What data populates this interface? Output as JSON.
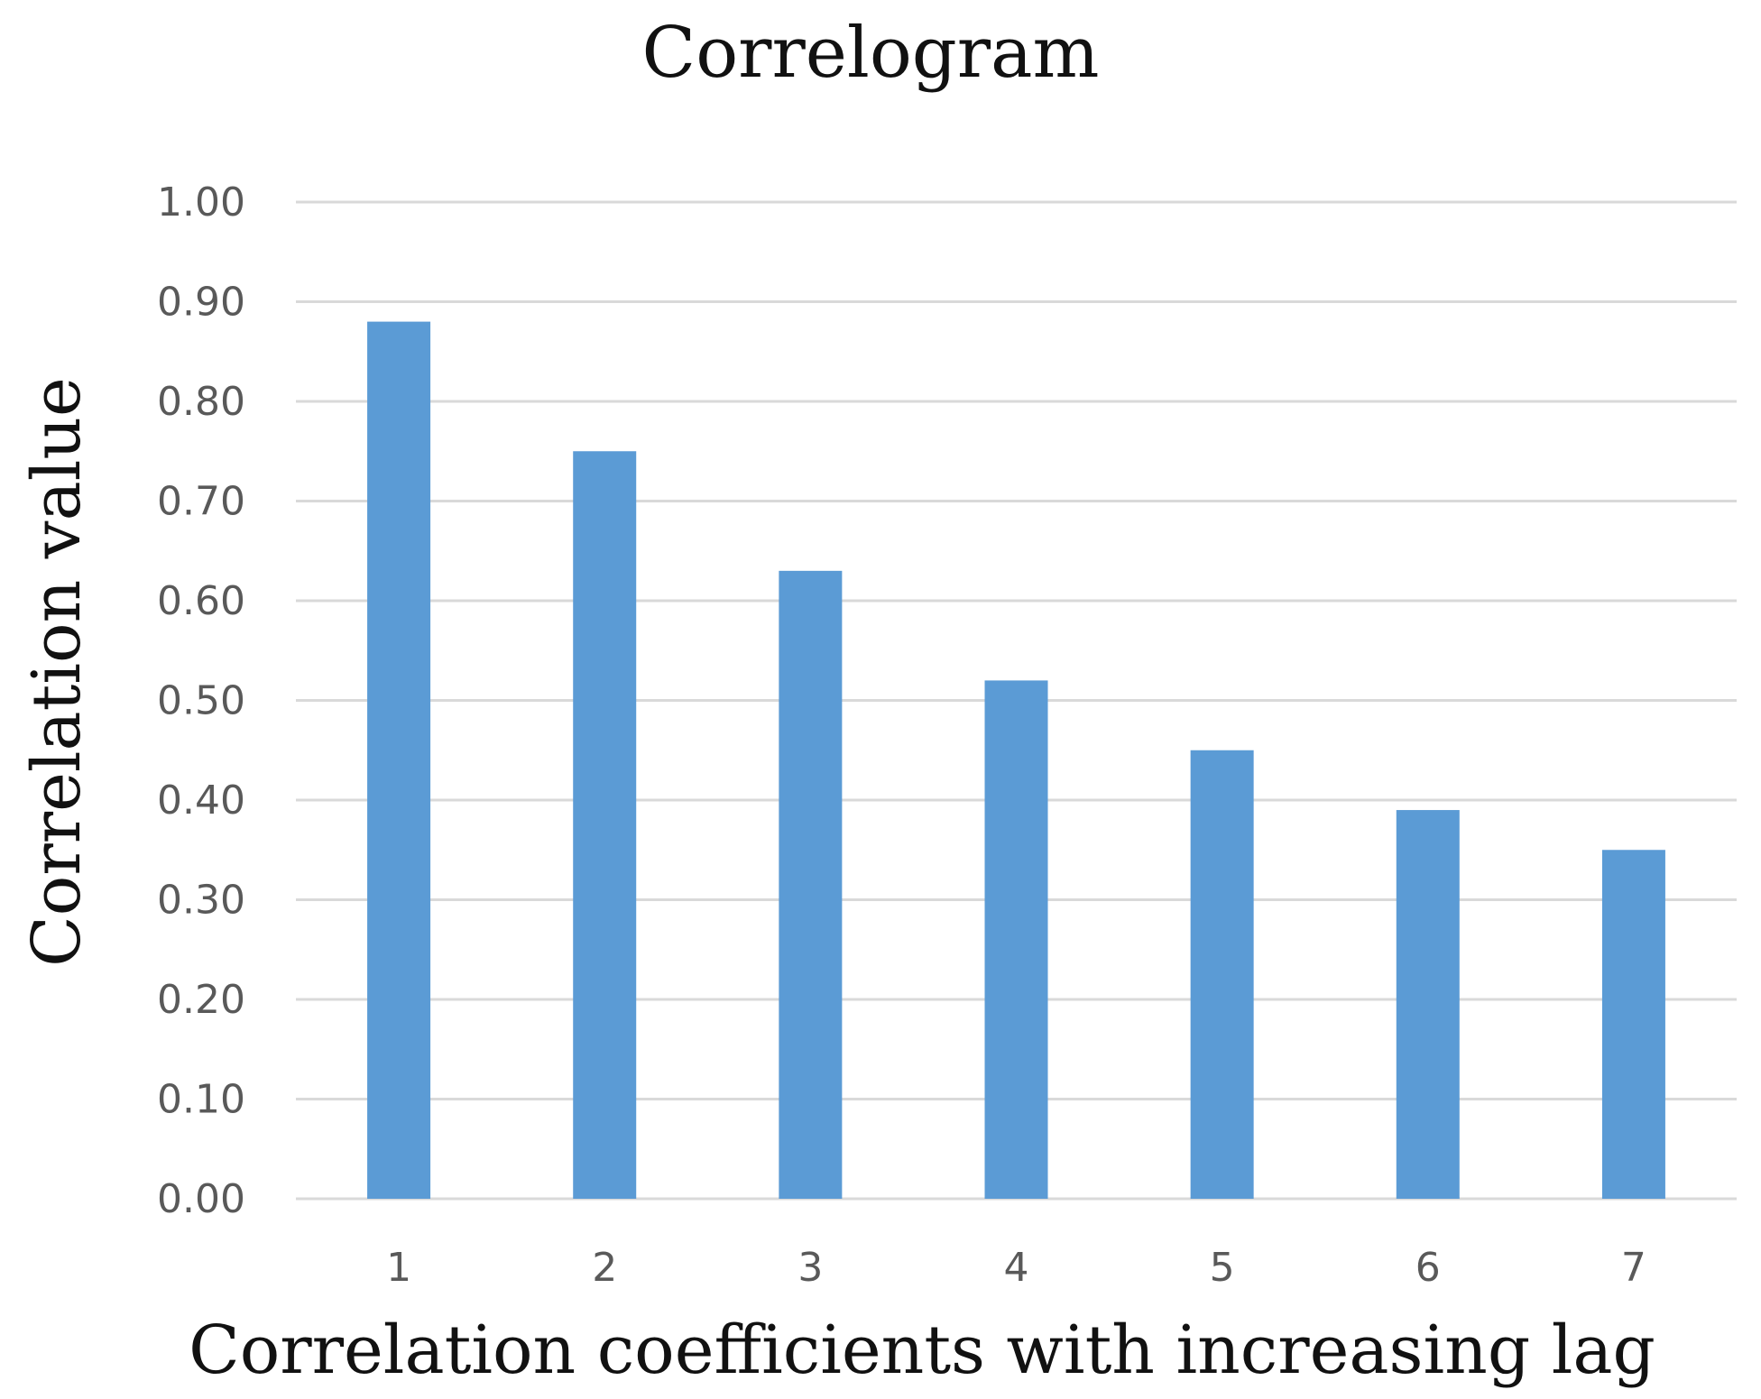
{
  "chart_data": {
    "type": "bar",
    "title": "Correlogram",
    "xlabel": "Correlation coefficients with increasing lag",
    "ylabel": "Correlation value",
    "categories": [
      "1",
      "2",
      "3",
      "4",
      "5",
      "6",
      "7"
    ],
    "values": [
      0.88,
      0.75,
      0.63,
      0.52,
      0.45,
      0.39,
      0.35
    ],
    "ylim": [
      0,
      1
    ],
    "yticks": [
      "0.00",
      "0.10",
      "0.20",
      "0.30",
      "0.40",
      "0.50",
      "0.60",
      "0.70",
      "0.80",
      "0.90",
      "1.00"
    ],
    "grid": true,
    "bar_color": "#5b9bd5",
    "grid_color": "#d9d9d9"
  }
}
